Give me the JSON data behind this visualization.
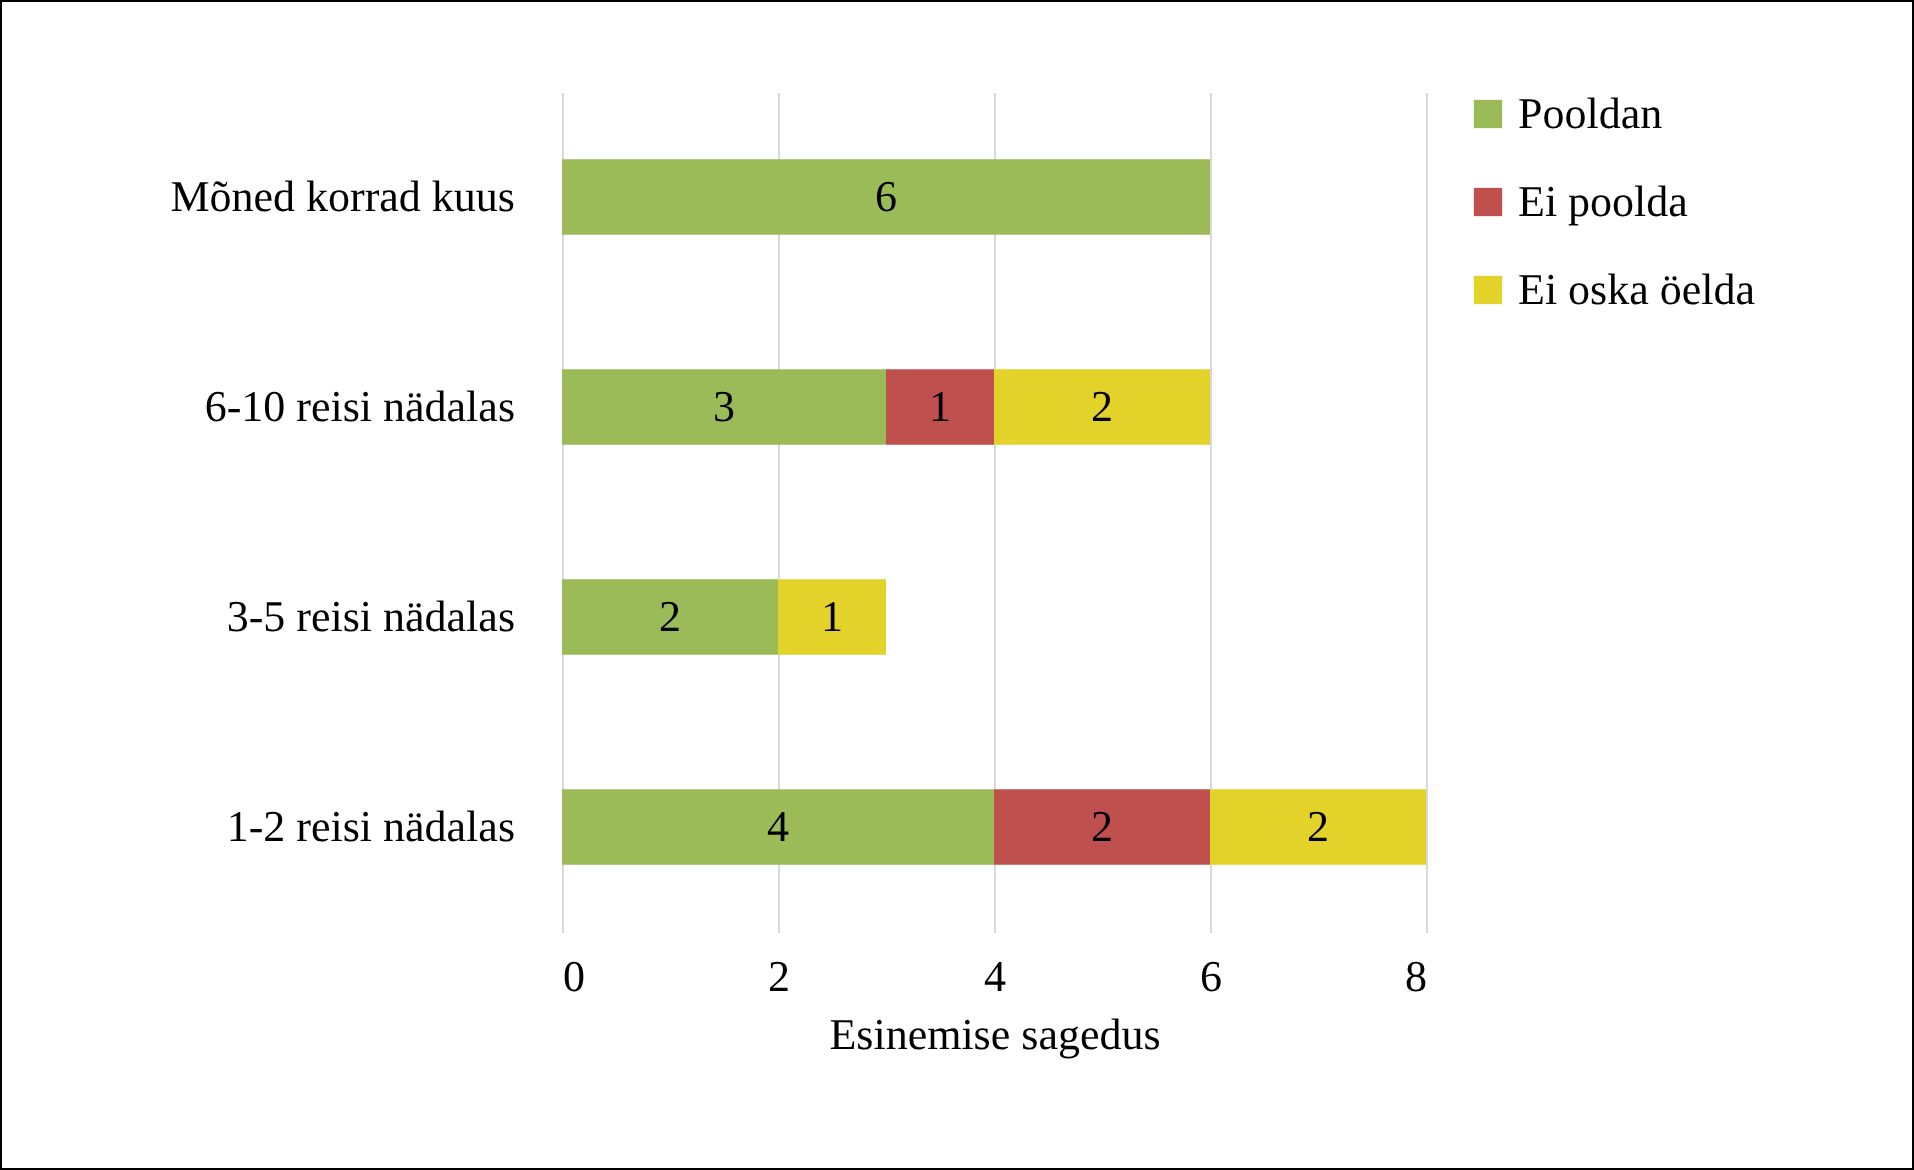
{
  "chart_data": {
    "type": "bar",
    "orientation": "horizontal",
    "stacked": true,
    "xlabel": "Esinemise sagedus",
    "categories": [
      "Mõned korrad kuus",
      "6-10 reisi nädalas",
      "3-5 reisi nädalas",
      "1-2 reisi nädalas"
    ],
    "series": [
      {
        "name": "Pooldan",
        "color": "#9bbb59",
        "values": [
          6,
          3,
          2,
          4
        ]
      },
      {
        "name": "Ei poolda",
        "color": "#c0504d",
        "values": [
          null,
          1,
          null,
          2
        ]
      },
      {
        "name": "Ei oska öelda",
        "color": "#e2d22a",
        "values": [
          null,
          2,
          1,
          2
        ]
      }
    ],
    "xlim": [
      0,
      8
    ],
    "xticks": [
      0,
      2,
      4,
      6,
      8
    ],
    "grid": "x",
    "legend": "right",
    "data_labels": true
  }
}
